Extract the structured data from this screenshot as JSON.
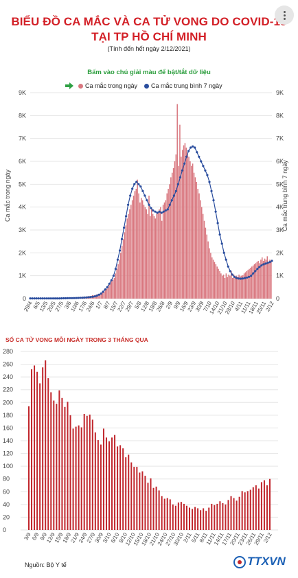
{
  "header": {
    "title_line1": "BIỂU ĐỒ CA MẮC VÀ CA TỬ VONG DO COVID-19",
    "title_line2": "TẠI TP HỒ CHÍ MINH",
    "subtitle": "(Tính đến hết ngày 2/12/2021)",
    "hint": "Bấm vào chú giải màu để bật/tắt dữ liệu"
  },
  "legend": {
    "daily_label": "Ca mắc trong ngày",
    "avg_label": "Ca mắc trung bình 7 ngày",
    "pointer_icon": "arrow-right-icon"
  },
  "colors": {
    "title": "#d32027",
    "bar": "#d9777f",
    "avg_line": "#2a4d9e",
    "death_bar": "#c1272d",
    "hint": "#2a9d3c"
  },
  "footer": {
    "source": "Nguồn: Bộ Y tế",
    "logo": "TTXVN"
  },
  "chart_data": [
    {
      "type": "bar",
      "ylabel_left": "Ca mắc trong ngày",
      "ylabel_right": "Ca mắc trung bình 7 ngày",
      "yticks": [
        "0",
        "1K",
        "2K",
        "3K",
        "4K",
        "5K",
        "6K",
        "7K",
        "8K",
        "9K"
      ],
      "ylim": [
        0,
        9000
      ],
      "grid": true,
      "x_start": "29/4",
      "x_end": "2/12",
      "xticks": [
        "29/4",
        "6/5",
        "13/5",
        "20/5",
        "27/5",
        "3/6",
        "10/6",
        "17/6",
        "24/6",
        "1/7",
        "8/7",
        "15/7",
        "22/7",
        "29/7",
        "5/8",
        "12/8",
        "19/8",
        "26/8",
        "2/9",
        "9/9",
        "16/9",
        "23/9",
        "30/9",
        "7/10",
        "14/10",
        "21/10",
        "28/10",
        "4/11",
        "11/11",
        "18/11",
        "25/11",
        "2/12"
      ],
      "series": [
        {
          "name": "Ca mắc trong ngày",
          "values_approx": [
            0,
            2,
            0,
            1,
            0,
            3,
            5,
            0,
            2,
            1,
            0,
            3,
            8,
            5,
            10,
            6,
            4,
            8,
            12,
            10,
            7,
            15,
            18,
            20,
            12,
            25,
            30,
            22,
            28,
            35,
            40,
            30,
            25,
            45,
            50,
            60,
            42,
            38,
            55,
            70,
            65,
            80,
            75,
            90,
            100,
            85,
            110,
            120,
            150,
            135,
            160,
            170,
            190,
            210,
            180,
            230,
            260,
            300,
            350,
            420,
            500,
            600,
            700,
            750,
            820,
            900,
            1100,
            1300,
            1500,
            1700,
            2000,
            2300,
            2600,
            2900,
            3200,
            3500,
            3700,
            3900,
            4100,
            4300,
            4500,
            4700,
            4800,
            5200,
            4600,
            4200,
            4400,
            4300,
            4100,
            4000,
            3900,
            3700,
            4500,
            3600,
            3900,
            3700,
            3600,
            3500,
            3700,
            3800,
            3900,
            4000,
            3400,
            4100,
            4200,
            4300,
            4600,
            4800,
            5000,
            5300,
            5500,
            5700,
            6000,
            6300,
            8500,
            5800,
            7600,
            6200,
            6500,
            6700,
            6800,
            6600,
            6400,
            6200,
            6000,
            5800,
            5900,
            5500,
            5300,
            5100,
            4800,
            4600,
            4300,
            4000,
            3700,
            3400,
            3100,
            2800,
            2500,
            2200,
            2000,
            1800,
            1700,
            1600,
            1500,
            1400,
            1300,
            1200,
            1100,
            1000,
            1050,
            900,
            1100,
            950,
            1050,
            1000,
            1200,
            900,
            1050,
            980,
            1000,
            950,
            1050,
            980,
            1000,
            1020,
            1100,
            1150,
            1200,
            1250,
            1300,
            1350,
            1400,
            1450,
            1500,
            1550,
            1600,
            1650,
            1550,
            1700,
            1800,
            1650,
            1750,
            1700,
            1850,
            1600,
            1700,
            1650
          ]
        },
        {
          "name": "Ca mắc trung bình 7 ngày",
          "values_approx": [
            10,
            10,
            10,
            10,
            10,
            10,
            10,
            10,
            10,
            10,
            10,
            10,
            10,
            10,
            10,
            12,
            14,
            16,
            18,
            20,
            22,
            25,
            28,
            30,
            35,
            40,
            45,
            50,
            60,
            70,
            80,
            100,
            130,
            170,
            220,
            300,
            400,
            500,
            650,
            800,
            1000,
            1300,
            1700,
            2100,
            2600,
            3100,
            3600,
            4100,
            4500,
            4800,
            5000,
            5100,
            5000,
            4900,
            4700,
            4500,
            4300,
            4100,
            3950,
            3850,
            3800,
            3750,
            3800,
            3750,
            3800,
            3850,
            3900,
            4100,
            4300,
            4500,
            4700,
            5000,
            5300,
            5600,
            5900,
            6200,
            6450,
            6600,
            6650,
            6600,
            6400,
            6200,
            6000,
            5800,
            5600,
            5400,
            5100,
            4700,
            4300,
            3800,
            3300,
            2800,
            2400,
            2000,
            1700,
            1400,
            1200,
            1050,
            950,
            900,
            880,
            870,
            880,
            900,
            920,
            950,
            1000,
            1100,
            1200,
            1300,
            1380,
            1450,
            1500,
            1530,
            1560,
            1600,
            1650
          ]
        }
      ]
    },
    {
      "type": "bar",
      "title": "SỐ CA TỬ VONG MỖI NGÀY TRONG 3 THÁNG QUA",
      "yticks": [
        "0",
        "20",
        "40",
        "60",
        "80",
        "100",
        "120",
        "140",
        "160",
        "180",
        "200",
        "220",
        "240",
        "260",
        "280"
      ],
      "ylim": [
        0,
        280
      ],
      "grid": true,
      "xticks": [
        "3/9",
        "6/9",
        "9/9",
        "12/9",
        "15/9",
        "18/9",
        "21/9",
        "24/9",
        "27/9",
        "30/9",
        "3/10",
        "6/10",
        "9/10",
        "12/10",
        "15/10",
        "18/10",
        "21/10",
        "24/10",
        "27/10",
        "30/10",
        "2/11",
        "5/11",
        "8/11",
        "11/11",
        "14/11",
        "17/11",
        "20/11",
        "23/11",
        "26/11",
        "29/11",
        "2/12"
      ],
      "series": [
        {
          "name": "Số ca tử vong",
          "values_approx": [
            194,
            252,
            258,
            248,
            230,
            255,
            266,
            238,
            216,
            203,
            198,
            219,
            207,
            193,
            201,
            180,
            159,
            162,
            164,
            161,
            182,
            179,
            181,
            173,
            153,
            141,
            134,
            159,
            145,
            139,
            145,
            149,
            131,
            133,
            128,
            114,
            118,
            106,
            99,
            99,
            90,
            92,
            85,
            74,
            81,
            66,
            68,
            62,
            53,
            49,
            50,
            48,
            40,
            38,
            43,
            44,
            41,
            38,
            35,
            33,
            36,
            34,
            31,
            34,
            30,
            35,
            41,
            39,
            41,
            45,
            42,
            40,
            47,
            53,
            50,
            46,
            52,
            61,
            59,
            61,
            63,
            67,
            70,
            65,
            75,
            78,
            70,
            80
          ]
        }
      ]
    }
  ]
}
